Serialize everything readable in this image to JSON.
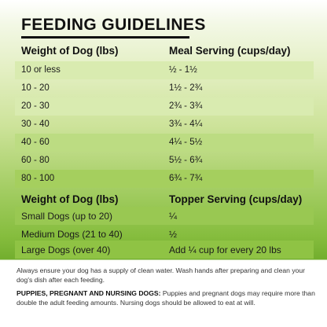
{
  "title": "FEEDING GUIDELINES",
  "meal_table": {
    "col1_header": "Weight of Dog (lbs)",
    "col2_header": "Meal Serving (cups/day)",
    "rows": [
      {
        "weight": "10 or less",
        "serving": "½ - 1½"
      },
      {
        "weight": "10 - 20",
        "serving": "1½ - 2¾"
      },
      {
        "weight": "20 - 30",
        "serving": "2¾ - 3¾"
      },
      {
        "weight": "30 - 40",
        "serving": "3¾ - 4¼"
      },
      {
        "weight": "40 - 60",
        "serving": "4¼ - 5½"
      },
      {
        "weight": "60 - 80",
        "serving": "5½ - 6¾"
      },
      {
        "weight": "80 - 100",
        "serving": "6¾ - 7¾"
      }
    ]
  },
  "topper_table": {
    "col1_header": "Weight of Dog (lbs)",
    "col2_header": "Topper Serving (cups/day)",
    "rows": [
      {
        "weight": "Small Dogs (up to 20)",
        "serving": "¼"
      },
      {
        "weight": "Medium Dogs (21 to 40)",
        "serving": "½"
      },
      {
        "weight": "Large Dogs (over 40)",
        "serving": "Add ¼ cup for every 20 lbs"
      }
    ]
  },
  "footer": {
    "note1": "Always ensure your dog has a supply of clean water. Wash hands after preparing and clean your dog's dish after each feeding.",
    "note2_label": "PUPPIES, PREGNANT AND NURSING DOGS:",
    "note2_text": " Puppies and pregnant dogs may require more than double the adult feeding amounts. Nursing dogs should be allowed to eat at will."
  }
}
